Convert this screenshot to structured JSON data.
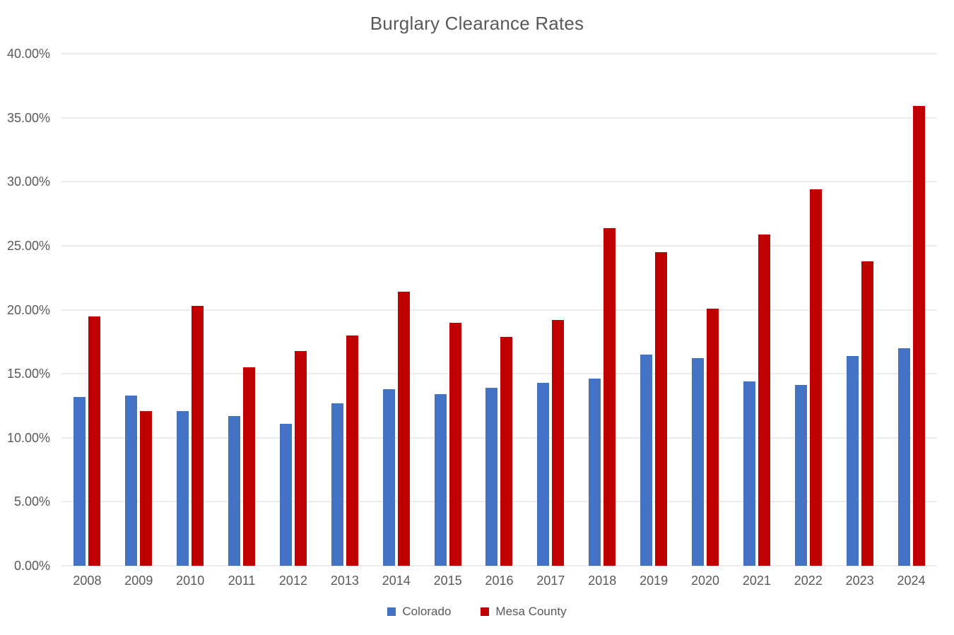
{
  "chart_data": {
    "type": "bar",
    "title": "Burglary Clearance Rates",
    "categories": [
      "2008",
      "2009",
      "2010",
      "2011",
      "2012",
      "2013",
      "2014",
      "2015",
      "2016",
      "2017",
      "2018",
      "2019",
      "2020",
      "2021",
      "2022",
      "2023",
      "2024"
    ],
    "series": [
      {
        "name": "Colorado",
        "color": "#4472C4",
        "values": [
          13.2,
          13.3,
          12.1,
          11.7,
          11.1,
          12.7,
          13.8,
          13.4,
          13.9,
          14.3,
          14.6,
          16.5,
          16.2,
          14.4,
          14.1,
          16.4,
          17.0
        ]
      },
      {
        "name": "Mesa County",
        "color": "#C00000",
        "values": [
          19.5,
          12.1,
          20.3,
          15.5,
          16.8,
          18.0,
          21.4,
          19.0,
          17.9,
          19.2,
          26.4,
          24.5,
          20.1,
          25.9,
          29.4,
          23.8,
          35.9
        ]
      }
    ],
    "xlabel": "",
    "ylabel": "",
    "ylim": [
      0,
      40
    ],
    "y_tick_step": 5,
    "y_tick_labels": [
      "0.00%",
      "5.00%",
      "10.00%",
      "15.00%",
      "20.00%",
      "25.00%",
      "30.00%",
      "35.00%",
      "40.00%"
    ],
    "grid": true,
    "legend_position": "bottom",
    "colors": {
      "background": "#FFFFFF",
      "gridline": "#D9D9D9",
      "axis_text": "#595959",
      "title_text": "#595959"
    }
  }
}
